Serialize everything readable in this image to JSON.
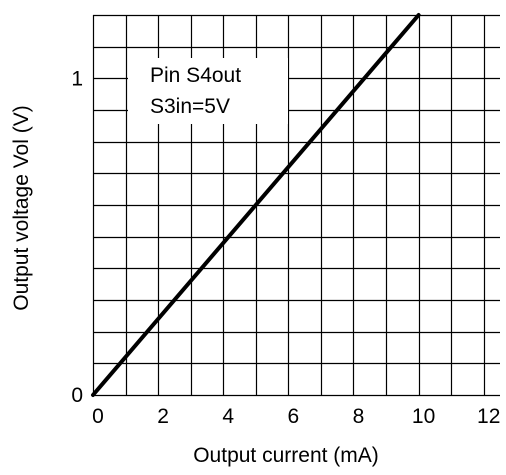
{
  "chart_data": {
    "type": "line",
    "title": "",
    "xlabel": "Output current  (mA)",
    "ylabel": "Output voltage Vol (V)",
    "xlim": [
      0,
      12.5
    ],
    "ylim": [
      0,
      1.2
    ],
    "grid": true,
    "x_ticks": [
      "0",
      "2",
      "4",
      "6",
      "8",
      "10",
      "12"
    ],
    "x_tick_values": [
      0,
      2,
      4,
      6,
      8,
      10,
      12
    ],
    "y_ticks": [
      "0",
      "1"
    ],
    "y_tick_values": [
      0,
      1
    ],
    "annotations": [
      "Pin S4out",
      "S3in=5V"
    ],
    "series": [
      {
        "x": [
          0,
          10
        ],
        "y": [
          0,
          1.2
        ]
      }
    ]
  },
  "colors": {
    "grid": "#000000",
    "line": "#000000",
    "background": "#ffffff"
  }
}
